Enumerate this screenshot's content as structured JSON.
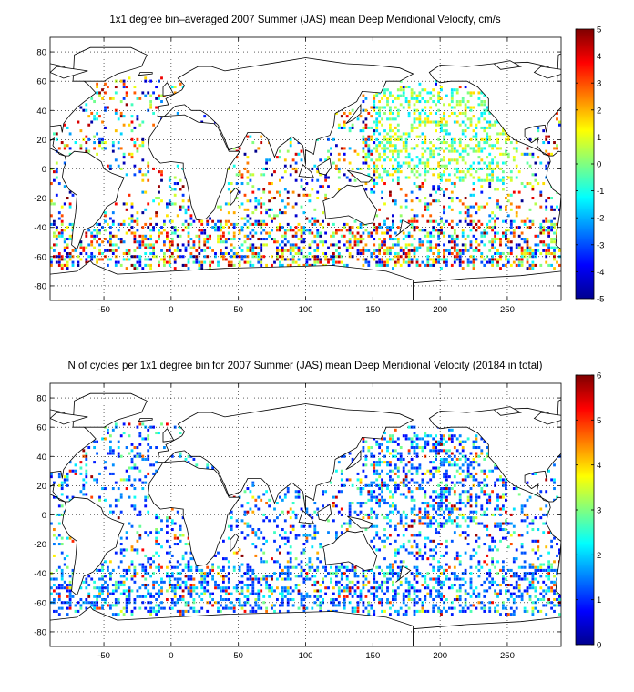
{
  "chart_data": [
    {
      "type": "heatmap",
      "title": "1x1 degree bin–averaged 2007 Summer (JAS) mean Deep Meridional Velocity, cm/s",
      "xlabel": "",
      "ylabel": "",
      "xlim": [
        -90,
        290
      ],
      "ylim": [
        -90,
        90
      ],
      "x_ticks": [
        "-50",
        "0",
        "50",
        "100",
        "150",
        "200",
        "250"
      ],
      "y_ticks": [
        "80",
        "60",
        "40",
        "20",
        "0",
        "-20",
        "-40",
        "-60",
        "-80"
      ],
      "grid": true,
      "colorbar": {
        "min": -5,
        "max": 5,
        "ticks": [
          "5",
          "4",
          "3",
          "2",
          "1",
          "0",
          "-1",
          "-2",
          "-3",
          "-4",
          "-5"
        ]
      },
      "colormap": "jet"
    },
    {
      "type": "heatmap",
      "title": "N of cycles per 1x1 degree bin for 2007 Summer (JAS) mean Deep Meridional Velocity (20184 in total)",
      "xlabel": "",
      "ylabel": "",
      "xlim": [
        -90,
        290
      ],
      "ylim": [
        -90,
        90
      ],
      "x_ticks": [
        "-50",
        "0",
        "50",
        "100",
        "150",
        "200",
        "250"
      ],
      "y_ticks": [
        "80",
        "60",
        "40",
        "20",
        "0",
        "-20",
        "-40",
        "-60",
        "-80"
      ],
      "grid": true,
      "colorbar": {
        "min": 0,
        "max": 6,
        "ticks": [
          "6",
          "5",
          "4",
          "3",
          "2",
          "1",
          "0"
        ]
      },
      "colormap": "jet"
    }
  ]
}
